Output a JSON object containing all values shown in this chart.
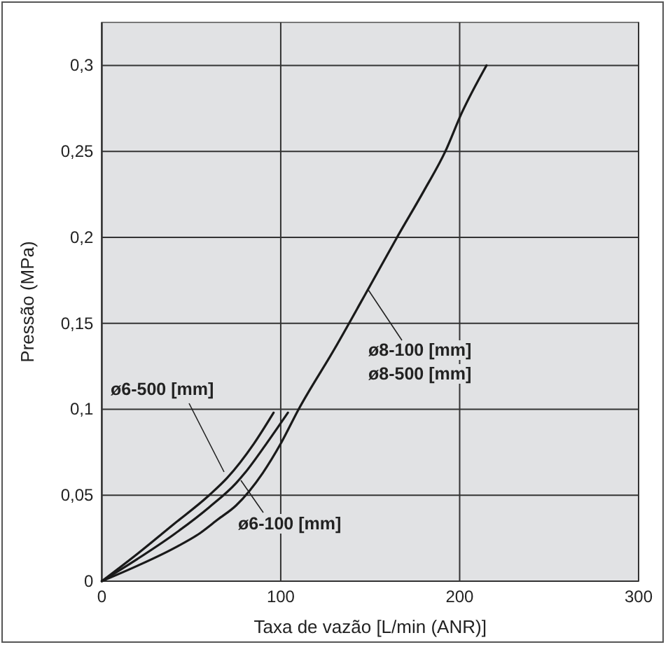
{
  "chart_data": {
    "type": "line",
    "xlabel": "Taxa de vazão [L/min (ANR)]",
    "ylabel": "Pressão (MPa)",
    "xlim": [
      0,
      300
    ],
    "xticks": [
      0,
      100,
      200,
      300
    ],
    "ylim": [
      0,
      0.325
    ],
    "yticks": [
      {
        "value": 0,
        "label": "0"
      },
      {
        "value": 0.05,
        "label": "0,05"
      },
      {
        "value": 0.1,
        "label": "0,1"
      },
      {
        "value": 0.15,
        "label": "0,15"
      },
      {
        "value": 0.2,
        "label": "0,2"
      },
      {
        "value": 0.25,
        "label": "0,25"
      },
      {
        "value": 0.3,
        "label": "0,3"
      }
    ],
    "grid": true,
    "line_style": "solid",
    "series": [
      {
        "name": "ø6-500 [mm]",
        "color": "#1a1a1a",
        "x": [
          0,
          20,
          40,
          60,
          70,
          85,
          96
        ],
        "values": [
          0,
          0.016,
          0.033,
          0.05,
          0.06,
          0.08,
          0.098
        ]
      },
      {
        "name": "ø6-100 [mm]",
        "color": "#1a1a1a",
        "x": [
          0,
          20,
          40,
          60,
          75,
          80,
          92,
          104
        ],
        "values": [
          0,
          0.013,
          0.027,
          0.043,
          0.057,
          0.063,
          0.08,
          0.098
        ]
      },
      {
        "name": "ø8-100 [mm]\nø8-500 [mm]",
        "color": "#1a1a1a",
        "x": [
          0,
          20,
          40,
          55,
          65,
          75,
          90,
          100,
          110,
          130,
          150,
          165,
          180,
          192,
          201,
          215
        ],
        "values": [
          0,
          0.009,
          0.019,
          0.028,
          0.036,
          0.044,
          0.063,
          0.08,
          0.1,
          0.135,
          0.172,
          0.2,
          0.227,
          0.25,
          0.272,
          0.3
        ]
      }
    ]
  }
}
